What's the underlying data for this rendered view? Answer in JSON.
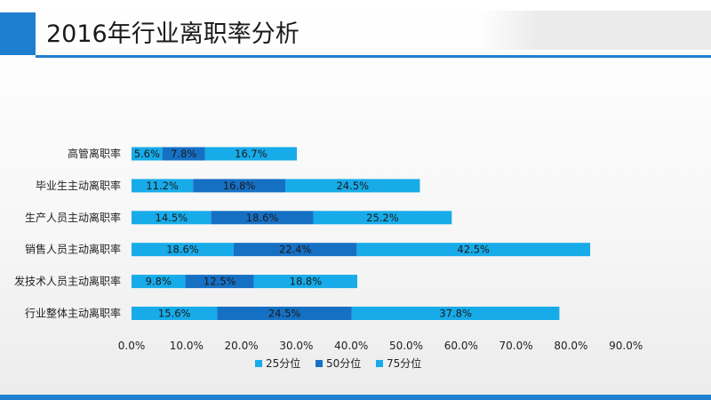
{
  "header": {
    "title": "2016年行业离职率分析"
  },
  "colors": {
    "accent": "#1e7fd0",
    "p25": "#17abe9",
    "p50": "#1570c4",
    "p75": "#17abe9"
  },
  "chart_data": {
    "type": "bar",
    "orientation": "horizontal",
    "stacked": true,
    "title": "",
    "xlabel": "",
    "ylabel": "",
    "xlim": [
      0,
      90
    ],
    "x_ticks": [
      "0.0%",
      "10.0%",
      "20.0%",
      "30.0%",
      "40.0%",
      "50.0%",
      "60.0%",
      "70.0%",
      "80.0%",
      "90.0%"
    ],
    "categories": [
      "高管离职率",
      "毕业生主动离职率",
      "生产人员主动离职率",
      "销售人员主动离职率",
      "发技术人员主动离职率",
      "行业整体主动离职率"
    ],
    "series": [
      {
        "name": "25分位",
        "values": [
          5.6,
          11.2,
          14.5,
          18.6,
          9.8,
          15.6
        ],
        "labels": [
          "5.6%",
          "11.2%",
          "14.5%",
          "18.6%",
          "9.8%",
          "15.6%"
        ]
      },
      {
        "name": "50分位",
        "values": [
          7.8,
          16.8,
          18.6,
          22.4,
          12.5,
          24.5
        ],
        "labels": [
          "7.8%",
          "16.8%",
          "18.6%",
          "22.4%",
          "12.5%",
          "24.5%"
        ]
      },
      {
        "name": "75分位",
        "values": [
          16.7,
          24.5,
          25.2,
          42.5,
          18.8,
          37.8
        ],
        "labels": [
          "16.7%",
          "24.5%",
          "25.2%",
          "42.5%",
          "18.8%",
          "37.8%"
        ]
      }
    ],
    "grid": false,
    "legend": "bottom"
  }
}
